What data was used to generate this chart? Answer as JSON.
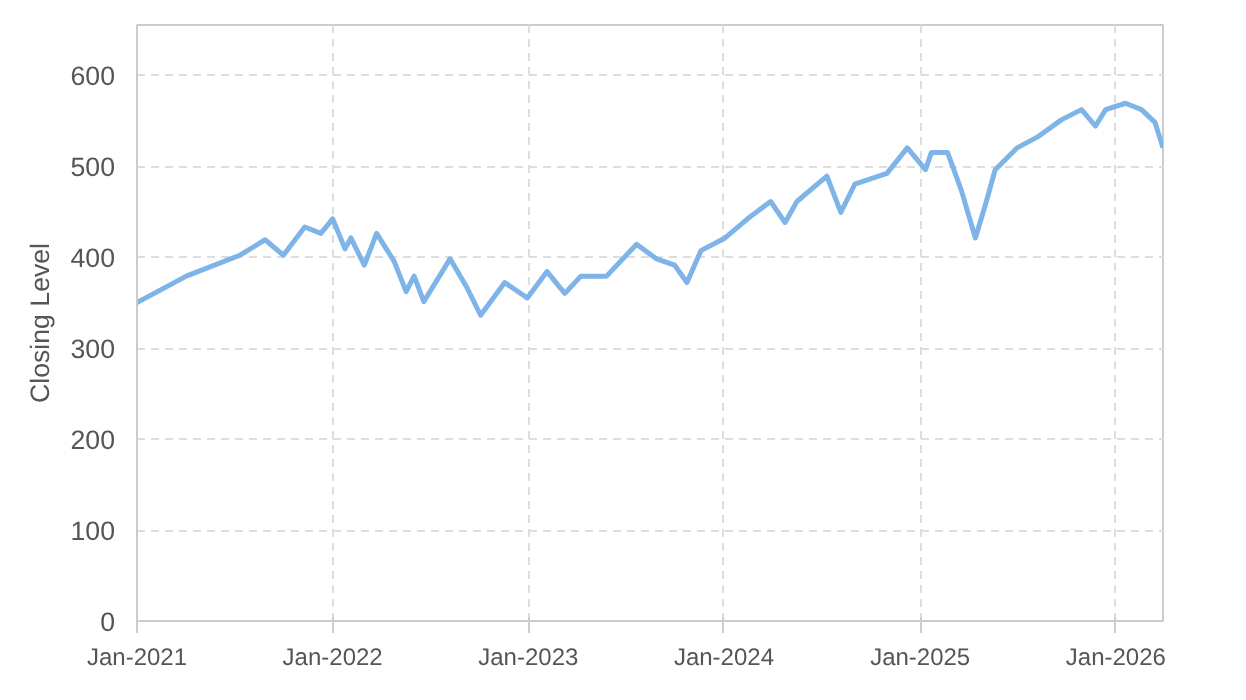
{
  "chart_data": {
    "type": "line",
    "ylabel": "Closing Level",
    "x": [
      "2021-01-01",
      "2021-04-03",
      "2021-07-12",
      "2021-08-28",
      "2021-10-01",
      "2021-11-10",
      "2021-12-10",
      "2022-01-01",
      "2022-01-24",
      "2022-02-04",
      "2022-03-01",
      "2022-03-24",
      "2022-04-26",
      "2022-05-18",
      "2022-06-02",
      "2022-06-20",
      "2022-08-08",
      "2022-09-08",
      "2022-10-04",
      "2022-11-18",
      "2022-12-30",
      "2023-02-05",
      "2023-03-10",
      "2023-04-09",
      "2023-05-27",
      "2023-07-22",
      "2023-08-28",
      "2023-10-01",
      "2023-10-24",
      "2023-11-19",
      "2024-01-03",
      "2024-02-14",
      "2024-03-28",
      "2024-04-24",
      "2024-05-16",
      "2024-07-11",
      "2024-08-06",
      "2024-09-01",
      "2024-10-31",
      "2024-12-08",
      "2025-01-11",
      "2025-01-22",
      "2025-02-21",
      "2025-03-19",
      "2025-04-14",
      "2025-05-02",
      "2025-05-21",
      "2025-07-01",
      "2025-08-08",
      "2025-09-22",
      "2025-10-29",
      "2025-11-24",
      "2025-12-13",
      "2026-01-19",
      "2026-02-18",
      "2026-03-15",
      "2026-03-30"
    ],
    "series": [
      {
        "color": "#7eb4e8",
        "values": [
          350,
          379,
          402,
          419,
          402,
          433,
          426,
          442,
          409,
          421,
          391,
          426,
          395,
          362,
          379,
          351,
          398,
          367,
          336,
          372,
          355,
          384,
          360,
          379,
          379,
          414,
          398,
          391,
          372,
          407,
          421,
          442,
          461,
          438,
          461,
          489,
          449,
          480,
          492,
          520,
          496,
          515,
          515,
          473,
          421,
          456,
          496,
          520,
          532,
          551,
          562,
          544,
          562,
          569,
          562,
          548,
          520
        ]
      }
    ],
    "xlim": [
      "2021-01-01",
      "2026-03-30"
    ],
    "xticks": [
      {
        "value": "2021-01-01",
        "label": "Jan-2021"
      },
      {
        "value": "2022-01-01",
        "label": "Jan-2022"
      },
      {
        "value": "2023-01-01",
        "label": "Jan-2023"
      },
      {
        "value": "2024-01-01",
        "label": "Jan-2024"
      },
      {
        "value": "2025-01-01",
        "label": "Jan-2025"
      },
      {
        "value": "2026-01-01",
        "label": "Jan-2026"
      }
    ],
    "ylim": [
      0,
      655
    ],
    "yticks": [
      0,
      100,
      200,
      300,
      400,
      500,
      600
    ],
    "grid": true,
    "line_style": "solid"
  }
}
